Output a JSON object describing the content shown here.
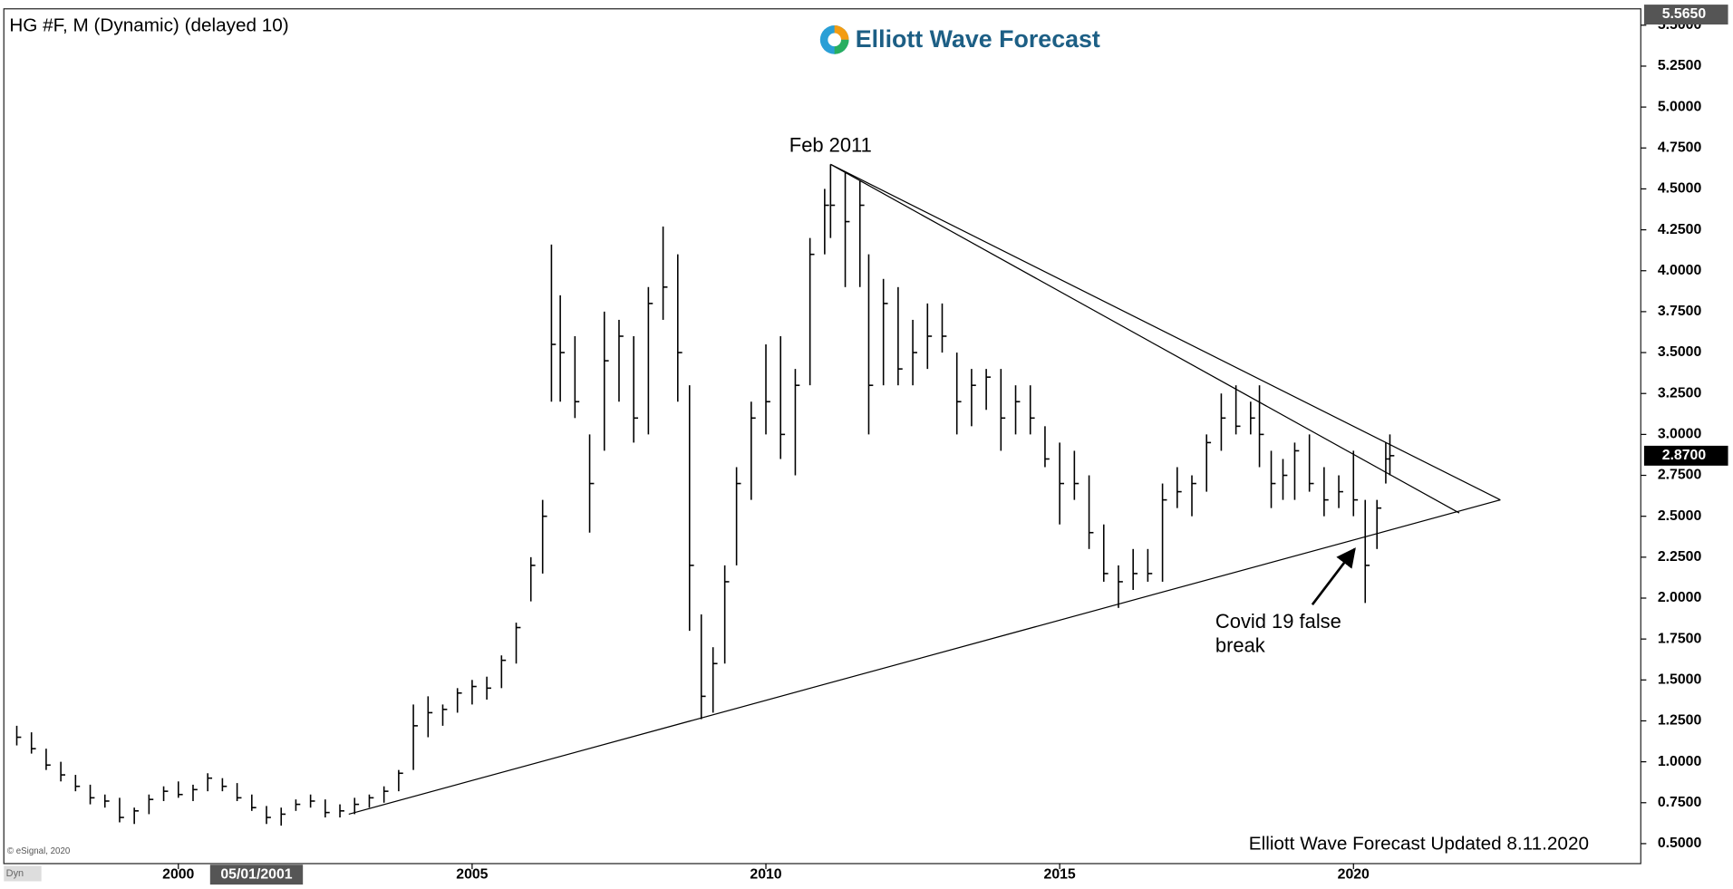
{
  "chart_data": {
    "type": "ohlc",
    "title": "HG #F, M (Dynamic) (delayed 10)",
    "logo": "Elliott Wave Forecast",
    "footer": "Elliott Wave Forecast Updated 8.11.2020",
    "copyright": "© eSignal, 2020",
    "corner": "Dyn",
    "color": "#000000",
    "xlim": [
      1997.03,
      2024.89
    ],
    "ylim": [
      0.378,
      5.6
    ],
    "xticks": [
      2000,
      2005,
      2010,
      2015,
      2020
    ],
    "yticks": [
      {
        "value": 0.5,
        "label": "0.5000"
      },
      {
        "value": 0.75,
        "label": "0.7500"
      },
      {
        "value": 1,
        "label": "1.0000"
      },
      {
        "value": 1.25,
        "label": "1.2500"
      },
      {
        "value": 1.5,
        "label": "1.5000"
      },
      {
        "value": 1.75,
        "label": "1.7500"
      },
      {
        "value": 2,
        "label": "2.0000"
      },
      {
        "value": 2.25,
        "label": "2.2500"
      },
      {
        "value": 2.5,
        "label": "2.5000"
      },
      {
        "value": 2.75,
        "label": "2.7500"
      },
      {
        "value": 3,
        "label": "3.0000"
      },
      {
        "value": 3.25,
        "label": "3.2500"
      },
      {
        "value": 3.5,
        "label": "3.5000"
      },
      {
        "value": 3.75,
        "label": "3.7500"
      },
      {
        "value": 4,
        "label": "4.0000"
      },
      {
        "value": 4.25,
        "label": "4.2500"
      },
      {
        "value": 4.5,
        "label": "4.5000"
      },
      {
        "value": 4.75,
        "label": "4.7500"
      },
      {
        "value": 5,
        "label": "5.0000"
      },
      {
        "value": 5.25,
        "label": "5.2500"
      },
      {
        "value": 5.5,
        "label": "5.5000"
      }
    ],
    "high_marker": {
      "value": 5.565,
      "label": "5.5650"
    },
    "last_price": {
      "value": 2.87,
      "label": "2.8700"
    },
    "cursor_date": {
      "value": 2001.33,
      "label": "05/01/2001"
    },
    "x": [
      1997.25,
      1997.5,
      1997.75,
      1998.0,
      1998.25,
      1998.5,
      1998.75,
      1999.0,
      1999.25,
      1999.5,
      1999.75,
      2000.0,
      2000.25,
      2000.5,
      2000.75,
      2001.0,
      2001.25,
      2001.5,
      2001.75,
      2002.0,
      2002.25,
      2002.5,
      2002.75,
      2003.0,
      2003.25,
      2003.5,
      2003.75,
      2004.0,
      2004.25,
      2004.5,
      2004.75,
      2005.0,
      2005.25,
      2005.5,
      2005.75,
      2006.0,
      2006.2,
      2006.35,
      2006.5,
      2006.75,
      2007.0,
      2007.25,
      2007.5,
      2007.75,
      2008.0,
      2008.25,
      2008.5,
      2008.7,
      2008.9,
      2009.1,
      2009.3,
      2009.5,
      2009.75,
      2010.0,
      2010.25,
      2010.5,
      2010.75,
      2011.0,
      2011.1,
      2011.35,
      2011.6,
      2011.75,
      2012.0,
      2012.25,
      2012.5,
      2012.75,
      2013.0,
      2013.25,
      2013.5,
      2013.75,
      2014.0,
      2014.25,
      2014.5,
      2014.75,
      2015.0,
      2015.25,
      2015.5,
      2015.75,
      2016.0,
      2016.25,
      2016.5,
      2016.75,
      2017.0,
      2017.25,
      2017.5,
      2017.75,
      2018.0,
      2018.25,
      2018.4,
      2018.6,
      2018.8,
      2019.0,
      2019.25,
      2019.5,
      2019.75,
      2020.0,
      2020.2,
      2020.4,
      2020.55,
      2020.62
    ],
    "high": [
      1.22,
      1.18,
      1.08,
      1.0,
      0.92,
      0.86,
      0.8,
      0.78,
      0.72,
      0.8,
      0.85,
      0.88,
      0.86,
      0.93,
      0.9,
      0.87,
      0.8,
      0.73,
      0.72,
      0.77,
      0.8,
      0.77,
      0.74,
      0.78,
      0.8,
      0.85,
      0.95,
      1.35,
      1.4,
      1.35,
      1.45,
      1.5,
      1.52,
      1.65,
      1.85,
      2.25,
      2.6,
      4.16,
      3.85,
      3.6,
      3.0,
      3.75,
      3.7,
      3.6,
      3.9,
      4.27,
      4.1,
      3.3,
      1.9,
      1.7,
      2.2,
      2.8,
      3.2,
      3.55,
      3.6,
      3.4,
      4.2,
      4.5,
      4.65,
      4.6,
      4.55,
      4.1,
      3.95,
      3.9,
      3.7,
      3.8,
      3.8,
      3.5,
      3.4,
      3.4,
      3.4,
      3.3,
      3.3,
      3.05,
      2.95,
      2.9,
      2.75,
      2.45,
      2.2,
      2.3,
      2.3,
      2.7,
      2.8,
      2.75,
      3.0,
      3.25,
      3.3,
      3.2,
      3.3,
      2.9,
      2.85,
      2.95,
      3.0,
      2.8,
      2.75,
      2.9,
      2.6,
      2.6,
      2.95,
      3.0
    ],
    "low": [
      1.1,
      1.05,
      0.95,
      0.88,
      0.82,
      0.74,
      0.72,
      0.63,
      0.62,
      0.68,
      0.76,
      0.78,
      0.76,
      0.82,
      0.82,
      0.76,
      0.7,
      0.62,
      0.61,
      0.7,
      0.72,
      0.66,
      0.66,
      0.68,
      0.72,
      0.75,
      0.82,
      0.95,
      1.15,
      1.22,
      1.3,
      1.35,
      1.38,
      1.45,
      1.6,
      1.98,
      2.15,
      3.2,
      3.2,
      3.1,
      2.4,
      2.9,
      3.2,
      2.95,
      3.0,
      3.7,
      3.2,
      1.8,
      1.26,
      1.3,
      1.6,
      2.2,
      2.6,
      3.0,
      2.85,
      2.75,
      3.3,
      4.1,
      4.2,
      3.9,
      3.9,
      3.0,
      3.3,
      3.3,
      3.3,
      3.4,
      3.5,
      3.0,
      3.05,
      3.15,
      2.9,
      3.0,
      3.0,
      2.8,
      2.45,
      2.6,
      2.3,
      2.1,
      1.94,
      2.05,
      2.1,
      2.1,
      2.55,
      2.5,
      2.65,
      2.9,
      3.0,
      3.0,
      2.8,
      2.55,
      2.6,
      2.6,
      2.65,
      2.5,
      2.55,
      2.5,
      1.97,
      2.3,
      2.7,
      2.75
    ],
    "close": [
      1.15,
      1.08,
      0.98,
      0.92,
      0.85,
      0.78,
      0.76,
      0.66,
      0.7,
      0.77,
      0.82,
      0.8,
      0.83,
      0.9,
      0.85,
      0.78,
      0.72,
      0.66,
      0.68,
      0.74,
      0.76,
      0.69,
      0.7,
      0.74,
      0.78,
      0.82,
      0.93,
      1.22,
      1.3,
      1.32,
      1.42,
      1.46,
      1.45,
      1.62,
      1.82,
      2.2,
      2.5,
      3.55,
      3.5,
      3.2,
      2.7,
      3.45,
      3.6,
      3.1,
      3.8,
      3.9,
      3.5,
      2.2,
      1.4,
      1.6,
      2.1,
      2.7,
      3.1,
      3.2,
      3.0,
      3.3,
      4.1,
      4.4,
      4.4,
      4.3,
      4.4,
      3.3,
      3.8,
      3.4,
      3.5,
      3.6,
      3.6,
      3.2,
      3.3,
      3.35,
      3.1,
      3.2,
      3.1,
      2.85,
      2.7,
      2.7,
      2.4,
      2.15,
      2.1,
      2.15,
      2.15,
      2.6,
      2.65,
      2.7,
      2.95,
      3.1,
      3.05,
      3.1,
      3.0,
      2.7,
      2.75,
      2.9,
      2.7,
      2.6,
      2.65,
      2.6,
      2.2,
      2.55,
      2.85,
      2.87
    ],
    "trendlines": [
      {
        "x": [
          2002.9,
          2022.5
        ],
        "y": [
          0.68,
          2.6
        ]
      },
      {
        "x": [
          2011.1,
          2022.5
        ],
        "y": [
          4.65,
          2.6
        ]
      },
      {
        "x": [
          2011.1,
          2021.8
        ],
        "y": [
          4.65,
          2.52
        ]
      }
    ],
    "annotations": [
      {
        "lines": [
          "Feb 2011"
        ],
        "x": 2011.1,
        "y": 4.76
      },
      {
        "lines": [
          "Covid 19 false",
          "break"
        ],
        "x": 2017.65,
        "y": 1.85,
        "arrow_x": [
          2019.3,
          2020.02
        ],
        "arrow_y": [
          1.96,
          2.3
        ]
      }
    ]
  }
}
